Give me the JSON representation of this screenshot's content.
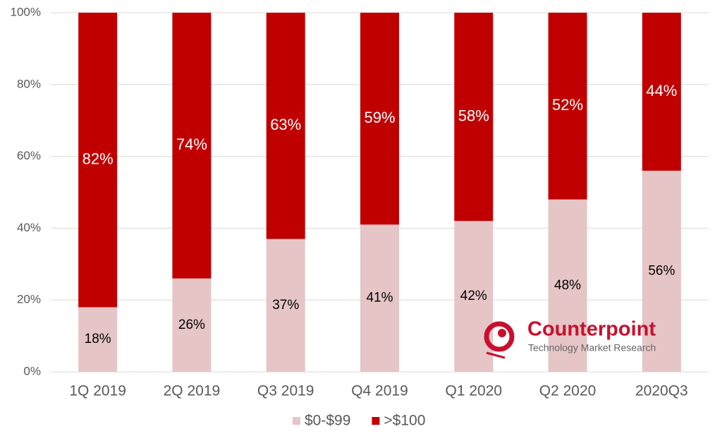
{
  "chart_data": {
    "type": "stacked_bar",
    "categories": [
      "1Q 2019",
      "2Q 2019",
      "Q3 2019",
      "Q4 2019",
      "Q1 2020",
      "Q2 2020",
      "2020Q3"
    ],
    "series": [
      {
        "name": "$0-$99",
        "color": "#e6c5c7",
        "label_color": "#000000",
        "values": [
          18,
          26,
          37,
          41,
          42,
          48,
          56
        ],
        "value_labels": [
          "18%",
          "26%",
          "37%",
          "41%",
          "42%",
          "48%",
          "56%"
        ]
      },
      {
        "name": ">$100",
        "color": "#c00000",
        "label_color": "#ffffff",
        "values": [
          82,
          74,
          63,
          59,
          58,
          52,
          44
        ],
        "value_labels": [
          "82%",
          "74%",
          "63%",
          "59%",
          "58%",
          "52%",
          "44%"
        ]
      }
    ],
    "ylim": [
      0,
      100
    ],
    "yticks": [
      {
        "value": 0,
        "label": "0%"
      },
      {
        "value": 20,
        "label": "20%"
      },
      {
        "value": 40,
        "label": "40%"
      },
      {
        "value": 60,
        "label": "60%"
      },
      {
        "value": 80,
        "label": "80%"
      },
      {
        "value": 100,
        "label": "100%"
      }
    ],
    "grid": true,
    "legend": "bottom"
  },
  "watermark": {
    "title": "Counterpoint",
    "subtitle": "Technology Market Research"
  }
}
